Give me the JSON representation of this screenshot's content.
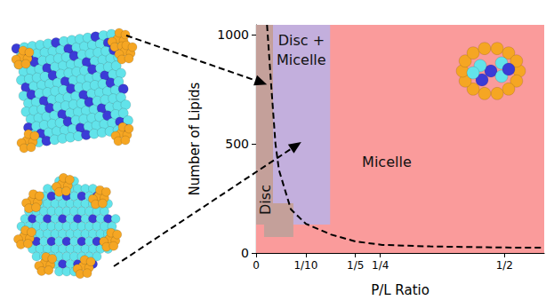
{
  "chart_data": {
    "type": "phase",
    "x_label": "P/L Ratio",
    "y_label": "Number of Lipids",
    "xlim": [
      0,
      0.58
    ],
    "ylim": [
      0,
      1045
    ],
    "xticks": [
      0,
      {
        "value": 0.1,
        "label": "1/10"
      },
      {
        "value": 0.2,
        "label": "1/5"
      },
      {
        "value": 0.25,
        "label": "1/4"
      },
      {
        "value": 0.5,
        "label": "1/2"
      }
    ],
    "yticks": [
      0,
      500,
      1000
    ],
    "regions": [
      {
        "name": "Micelle",
        "color": "#fa9b9b",
        "rects": [
          [
            0,
            0,
            0.58,
            1045
          ]
        ],
        "label_x": 0.263,
        "label_y": 415
      },
      {
        "name": "Disc + Micelle",
        "color": "#c3afdd",
        "rects": [
          [
            0.034,
            130,
            0.149,
            1045
          ]
        ],
        "label_x": 0.091,
        "label_y": 930
      },
      {
        "name": "Disc",
        "color": "#c4a09a",
        "rects": [
          [
            0,
            130,
            0.034,
            1045
          ],
          [
            0.016,
            73,
            0.075,
            228
          ]
        ],
        "label_x": 0.018,
        "label_y": 244
      }
    ],
    "boundary": {
      "x": [
        0.022,
        0.03,
        0.039,
        0.046,
        0.07,
        0.1,
        0.15,
        0.2,
        0.254,
        0.35,
        0.5,
        0.58
      ],
      "y": [
        1045,
        780,
        500,
        380,
        200,
        134,
        85,
        53,
        37,
        30,
        25,
        24
      ],
      "color": "#000000",
      "line_style": "dashed"
    },
    "arrows": [
      {
        "x": 0.022,
        "y": 772
      },
      {
        "x": 0.091,
        "y": 508
      }
    ]
  }
}
